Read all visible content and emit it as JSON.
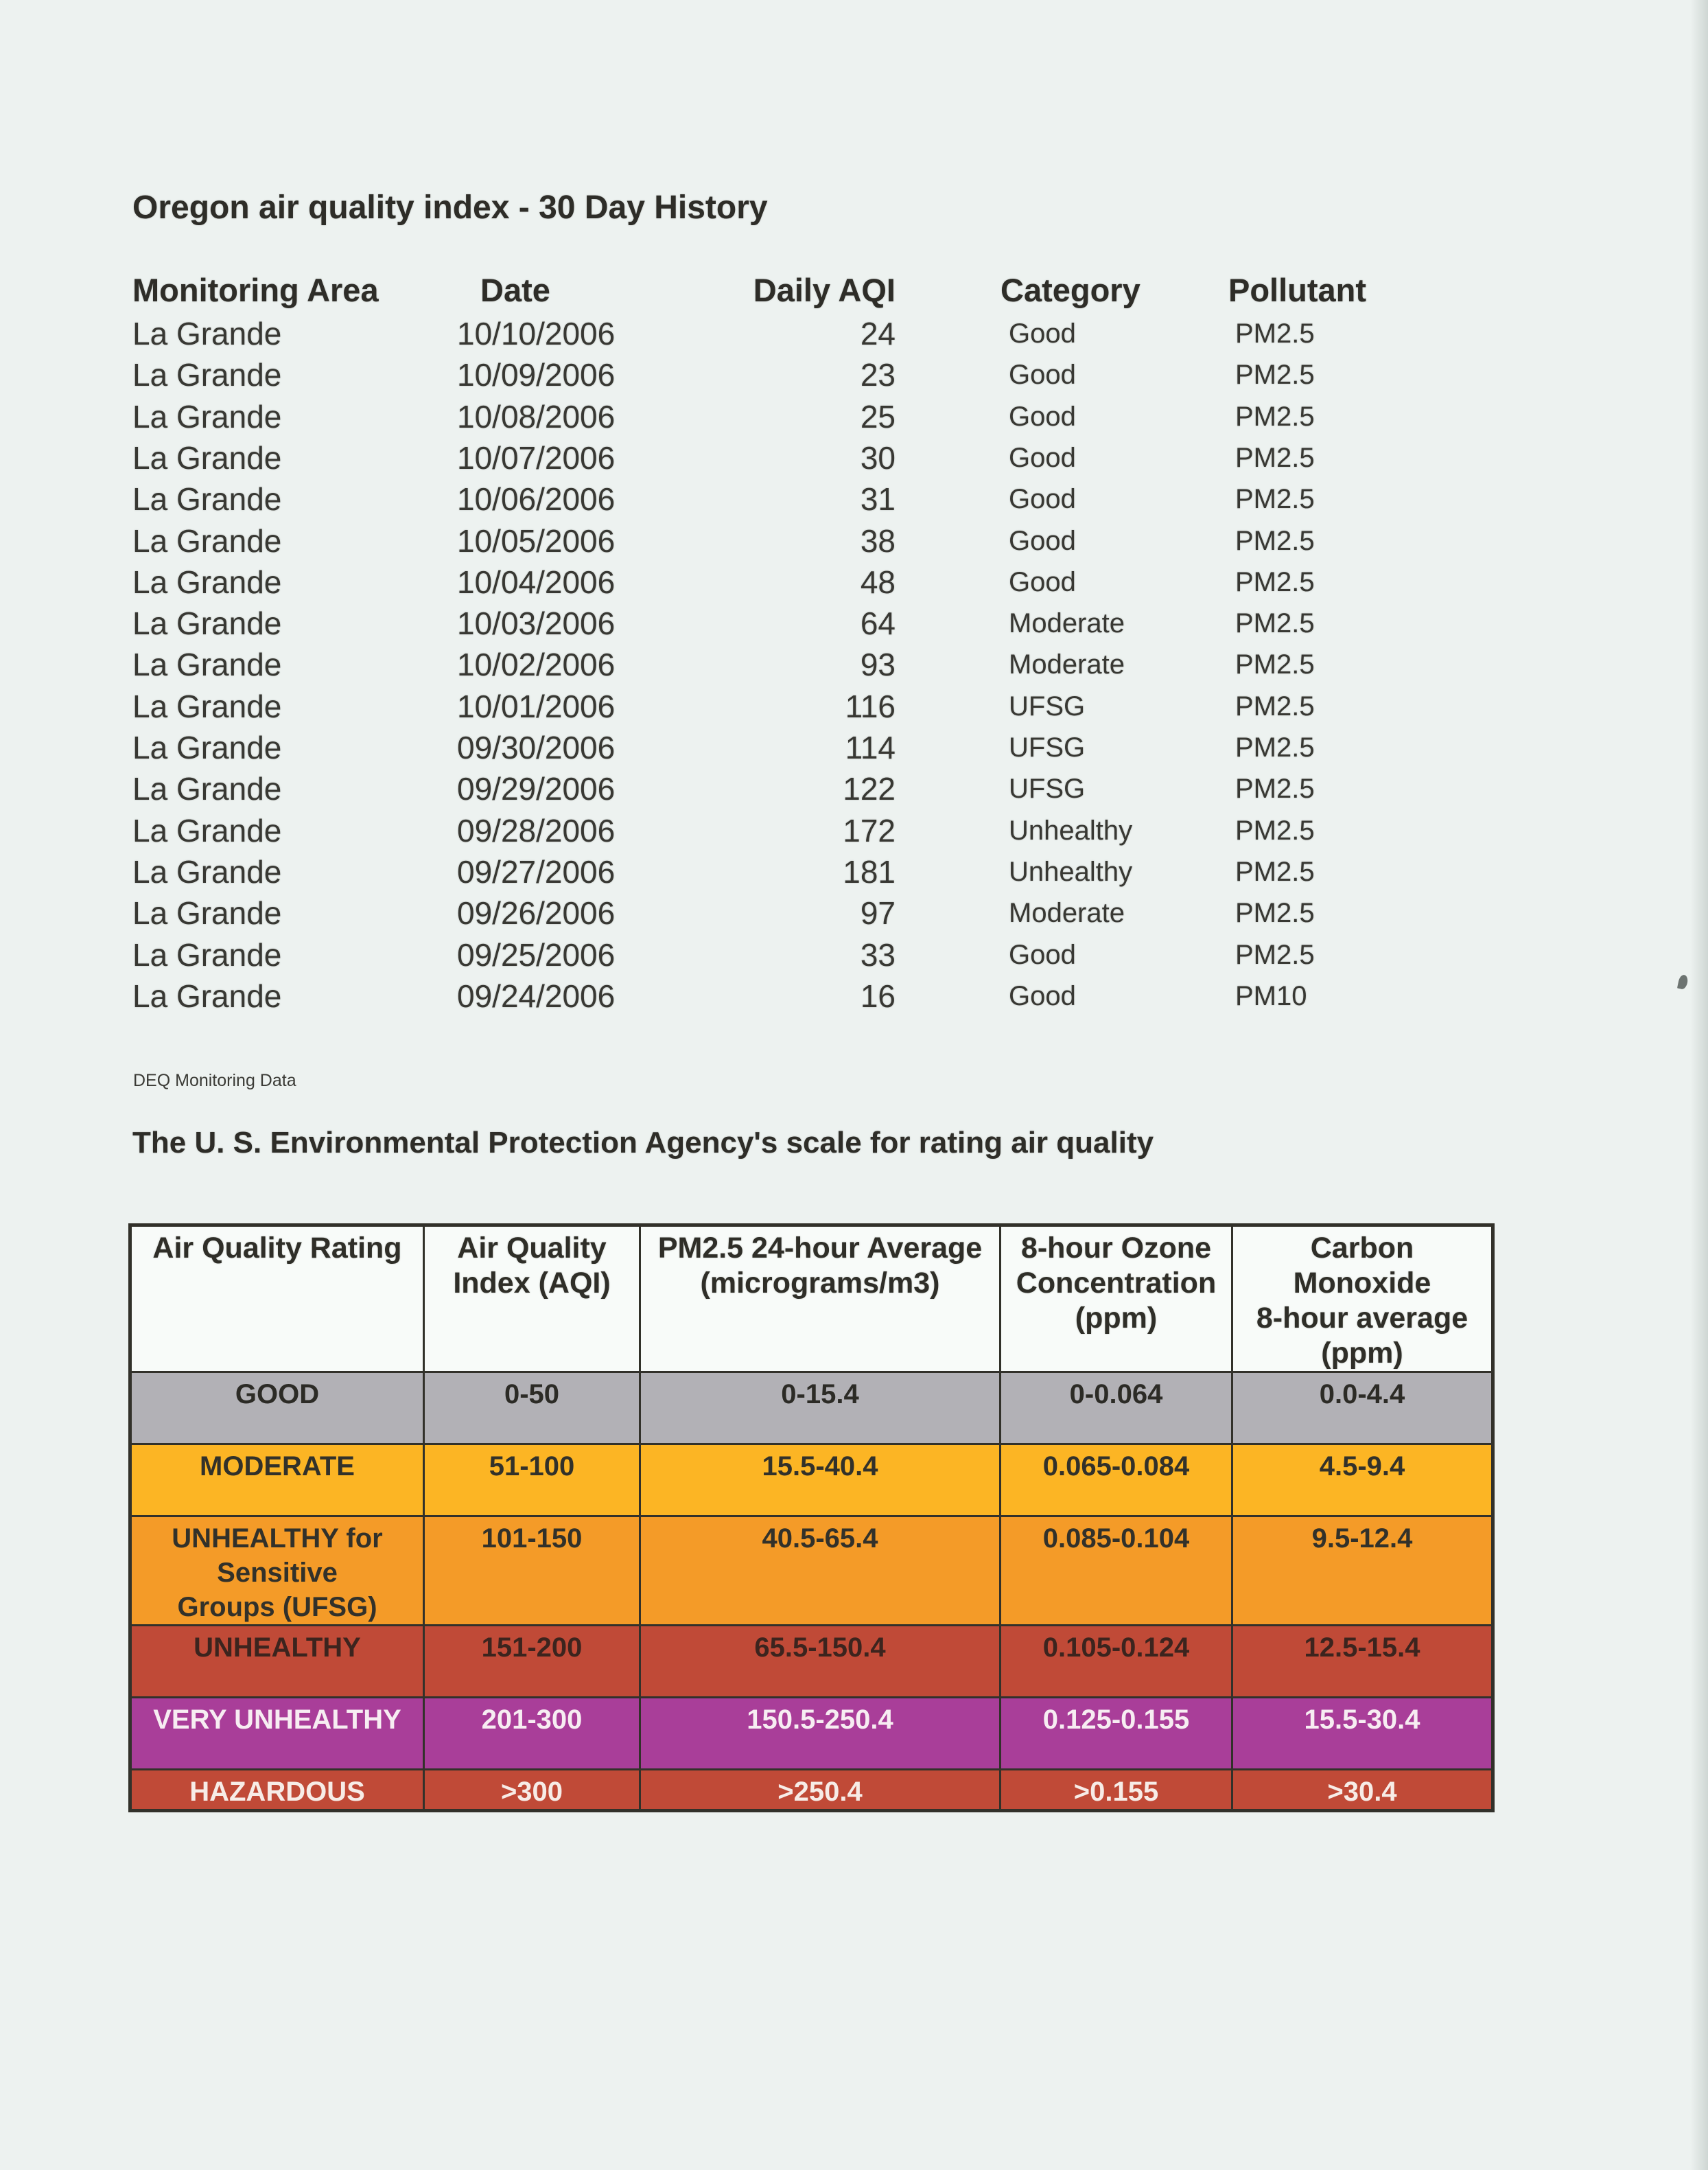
{
  "colors": {
    "page_bg": "#edf2f0",
    "ink": "#343530",
    "table_border": "#32312a",
    "epa_header_bg": "#f8fbf9"
  },
  "history": {
    "title": "Oregon air quality index - 30 Day History",
    "columns": [
      "Monitoring Area",
      "Date",
      "Daily AQI",
      "Category",
      "Pollutant"
    ],
    "rows": [
      [
        "La Grande",
        "10/10/2006",
        "24",
        "Good",
        "PM2.5"
      ],
      [
        "La Grande",
        "10/09/2006",
        "23",
        "Good",
        "PM2.5"
      ],
      [
        "La Grande",
        "10/08/2006",
        "25",
        "Good",
        "PM2.5"
      ],
      [
        "La Grande",
        "10/07/2006",
        "30",
        "Good",
        "PM2.5"
      ],
      [
        "La Grande",
        "10/06/2006",
        "31",
        "Good",
        "PM2.5"
      ],
      [
        "La Grande",
        "10/05/2006",
        "38",
        "Good",
        "PM2.5"
      ],
      [
        "La Grande",
        "10/04/2006",
        "48",
        "Good",
        "PM2.5"
      ],
      [
        "La Grande",
        "10/03/2006",
        "64",
        "Moderate",
        "PM2.5"
      ],
      [
        "La Grande",
        "10/02/2006",
        "93",
        "Moderate",
        "PM2.5"
      ],
      [
        "La Grande",
        "10/01/2006",
        "116",
        "UFSG",
        "PM2.5"
      ],
      [
        "La Grande",
        "09/30/2006",
        "114",
        "UFSG",
        "PM2.5"
      ],
      [
        "La Grande",
        "09/29/2006",
        "122",
        "UFSG",
        "PM2.5"
      ],
      [
        "La Grande",
        "09/28/2006",
        "172",
        "Unhealthy",
        "PM2.5"
      ],
      [
        "La Grande",
        "09/27/2006",
        "181",
        "Unhealthy",
        "PM2.5"
      ],
      [
        "La Grande",
        "09/26/2006",
        "97",
        "Moderate",
        "PM2.5"
      ],
      [
        "La Grande",
        "09/25/2006",
        "33",
        "Good",
        "PM2.5"
      ],
      [
        "La Grande",
        "09/24/2006",
        "16",
        "Good",
        "PM10"
      ]
    ],
    "footnote": "DEQ Monitoring Data"
  },
  "epa": {
    "title": "The U. S. Environmental Protection Agency's scale for rating air quality",
    "columns": [
      "Air Quality Rating",
      "Air Quality\nIndex (AQI)",
      "PM2.5 24-hour Average\n(micrograms/m3)",
      "8-hour Ozone\nConcentration\n(ppm)",
      "Carbon Monoxide\n8-hour average\n(ppm)"
    ],
    "rows": [
      {
        "rating": "GOOD",
        "aqi": "0-50",
        "pm25": "0-15.4",
        "ozone": "0-0.064",
        "co": "0.0-4.4",
        "bg": "#b2b1b6",
        "fg": "#2c2b26"
      },
      {
        "rating": "MODERATE",
        "aqi": "51-100",
        "pm25": "15.5-40.4",
        "ozone": "0.065-0.084",
        "co": "4.5-9.4",
        "bg": "#fcb524",
        "fg": "#32312a"
      },
      {
        "rating": "UNHEALTHY for\nSensitive\nGroups (UFSG)",
        "aqi": "101-150",
        "pm25": "40.5-65.4",
        "ozone": "0.085-0.104",
        "co": "9.5-12.4",
        "bg": "#f49b28",
        "fg": "#32312a"
      },
      {
        "rating": "UNHEALTHY",
        "aqi": "151-200",
        "pm25": "65.5-150.4",
        "ozone": "0.105-0.124",
        "co": "12.5-15.4",
        "bg": "#c04a37",
        "fg": "#3c241e"
      },
      {
        "rating": "VERY UNHEALTHY",
        "aqi": "201-300",
        "pm25": "150.5-250.4",
        "ozone": "0.125-0.155",
        "co": "15.5-30.4",
        "bg": "#a93e99",
        "fg": "#f7edf2"
      },
      {
        "rating": "HAZARDOUS",
        "aqi": ">300",
        "pm25": ">250.4",
        "ozone": ">0.155",
        "co": ">30.4",
        "bg": "#c04a37",
        "fg": "#f7ece7"
      }
    ]
  }
}
